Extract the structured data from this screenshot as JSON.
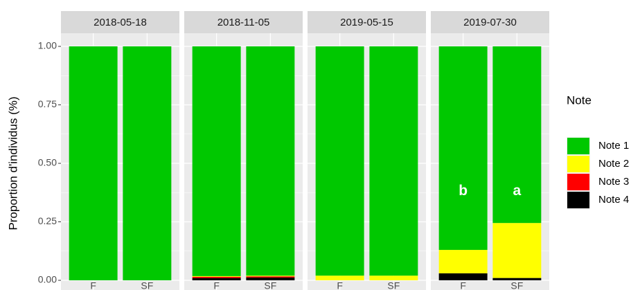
{
  "chart_data": {
    "type": "bar",
    "stacked": true,
    "ylabel": "Proportion d'individus (%)",
    "ylim": [
      -0.05,
      1.05
    ],
    "yticks": [
      {
        "value": 0,
        "label": "0.00"
      },
      {
        "value": 0.25,
        "label": "0.25"
      },
      {
        "value": 0.5,
        "label": "0.50"
      },
      {
        "value": 0.75,
        "label": "0.75"
      },
      {
        "value": 1,
        "label": "1.00"
      }
    ],
    "grid": true,
    "legend_title": "Note",
    "legend_position": "right",
    "facets": [
      {
        "title": "2018-05-18",
        "categories": [
          "F",
          "SF"
        ]
      },
      {
        "title": "2018-11-05",
        "categories": [
          "F",
          "SF"
        ]
      },
      {
        "title": "2019-05-15",
        "categories": [
          "F",
          "SF"
        ]
      },
      {
        "title": "2019-07-30",
        "categories": [
          "F",
          "SF"
        ],
        "annotations": [
          {
            "text": "b",
            "category": 0,
            "y": 0.38
          },
          {
            "text": "a",
            "category": 1,
            "y": 0.38
          }
        ]
      }
    ],
    "series": [
      {
        "name": "Note 1",
        "color": "#00c800",
        "values": [
          [
            1,
            1
          ],
          [
            0.982,
            0.98
          ],
          [
            0.98,
            0.98
          ],
          [
            0.87,
            0.755
          ]
        ]
      },
      {
        "name": "Note 2",
        "color": "#ffff00",
        "values": [
          [
            0,
            0
          ],
          [
            0.003,
            0.003
          ],
          [
            0.02,
            0.02
          ],
          [
            0.1,
            0.235
          ]
        ]
      },
      {
        "name": "Note 3",
        "color": "#ff0000",
        "values": [
          [
            0,
            0
          ],
          [
            0.005,
            0.005
          ],
          [
            0,
            0
          ],
          [
            0,
            0
          ]
        ]
      },
      {
        "name": "Note 4",
        "color": "#000000",
        "values": [
          [
            0,
            0
          ],
          [
            0.01,
            0.012
          ],
          [
            0,
            0
          ],
          [
            0.03,
            0.01
          ]
        ]
      }
    ]
  }
}
